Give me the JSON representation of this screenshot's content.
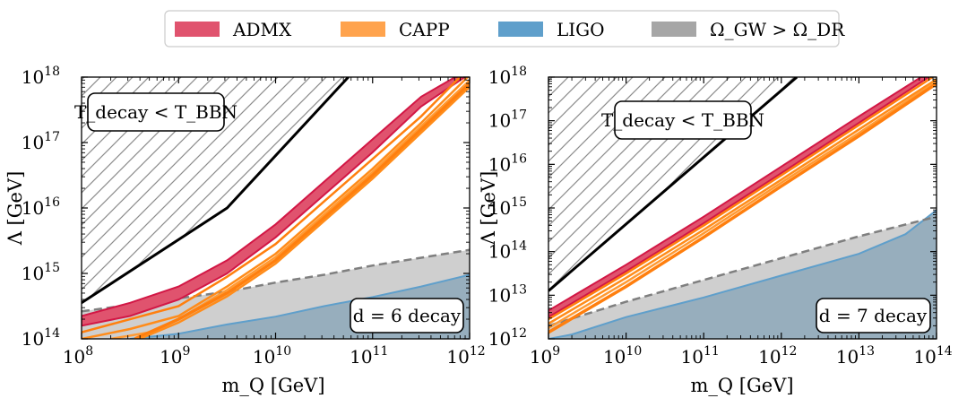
{
  "legend": {
    "items": [
      {
        "label": "ADMX",
        "color": "#e0536e"
      },
      {
        "label": "CAPP",
        "color": "#ffa34d"
      },
      {
        "label": "LIGO",
        "color": "#5f9fcb"
      },
      {
        "label": "Ω_GW > Ω_DR",
        "color": "#a6a6a6"
      }
    ]
  },
  "chart_data": [
    {
      "type": "area",
      "title": "",
      "xlabel": "m_Q [GeV]",
      "ylabel": "Λ [GeV]",
      "xscale": "log",
      "yscale": "log",
      "xlim_log10": [
        8,
        12
      ],
      "ylim_log10": [
        14,
        18
      ],
      "x_ticks": [
        {
          "exp": "8"
        },
        {
          "exp": "9"
        },
        {
          "exp": "10"
        },
        {
          "exp": "11"
        },
        {
          "exp": "12"
        }
      ],
      "y_ticks": [
        {
          "exp": "14"
        },
        {
          "exp": "15"
        },
        {
          "exp": "16"
        },
        {
          "exp": "17"
        },
        {
          "exp": "18"
        }
      ],
      "annotation_bbn": "T_decay < T_BBN",
      "annotation_decay": "d = 6 decay",
      "hatch_region": {
        "label": "T_decay < T_BBN",
        "boundary_log10": [
          [
            8,
            14.55
          ],
          [
            9.5,
            16.0
          ],
          [
            10.75,
            18.0
          ]
        ]
      },
      "bbn_line_log10": [
        [
          8,
          14.55
        ],
        [
          9.5,
          16.0
        ],
        [
          10.75,
          18.0
        ]
      ],
      "admx_band_log10": {
        "upper": [
          [
            8,
            14.35
          ],
          [
            8.5,
            14.55
          ],
          [
            9.0,
            14.8
          ],
          [
            9.5,
            15.2
          ],
          [
            10.0,
            15.75
          ],
          [
            10.5,
            16.4
          ],
          [
            11.0,
            17.05
          ],
          [
            11.5,
            17.7
          ],
          [
            11.85,
            18.0
          ]
        ],
        "lower": [
          [
            8,
            14.2
          ],
          [
            8.5,
            14.35
          ],
          [
            9.0,
            14.6
          ],
          [
            9.5,
            15.0
          ],
          [
            10.0,
            15.55
          ],
          [
            10.5,
            16.2
          ],
          [
            11.0,
            16.85
          ],
          [
            11.5,
            17.55
          ],
          [
            11.95,
            18.0
          ]
        ]
      },
      "capp_lines_log10": [
        [
          [
            8.0,
            14.1
          ],
          [
            8.5,
            14.3
          ],
          [
            9.0,
            14.5
          ],
          [
            9.5,
            14.95
          ],
          [
            10.0,
            15.45
          ],
          [
            10.5,
            16.1
          ],
          [
            11.0,
            16.75
          ],
          [
            11.5,
            17.4
          ],
          [
            11.9,
            18.0
          ]
        ],
        [
          [
            8.0,
            14.0
          ],
          [
            8.5,
            14.15
          ],
          [
            9.0,
            14.35
          ],
          [
            9.5,
            14.8
          ],
          [
            10.0,
            15.3
          ],
          [
            10.5,
            15.95
          ],
          [
            11.0,
            16.6
          ],
          [
            11.5,
            17.3
          ],
          [
            11.98,
            18.0
          ]
        ],
        [
          [
            8.3,
            14.0
          ],
          [
            8.7,
            14.1
          ],
          [
            9.0,
            14.3
          ],
          [
            9.5,
            14.75
          ],
          [
            10.0,
            15.25
          ],
          [
            10.5,
            15.9
          ],
          [
            11.0,
            16.55
          ],
          [
            11.5,
            17.25
          ],
          [
            12.0,
            17.95
          ]
        ],
        [
          [
            8.55,
            14.0
          ],
          [
            9.0,
            14.3
          ],
          [
            9.5,
            14.7
          ],
          [
            10.0,
            15.2
          ],
          [
            10.5,
            15.85
          ],
          [
            11.0,
            16.5
          ],
          [
            11.5,
            17.2
          ],
          [
            12.0,
            17.9
          ]
        ],
        [
          [
            8.6,
            14.0
          ],
          [
            9.0,
            14.25
          ],
          [
            9.5,
            14.65
          ],
          [
            10.0,
            15.15
          ],
          [
            10.5,
            15.8
          ],
          [
            11.0,
            16.45
          ],
          [
            11.5,
            17.15
          ],
          [
            12.0,
            17.85
          ]
        ]
      ],
      "gw_dashed_log10": [
        [
          8,
          14.42
        ],
        [
          8.5,
          14.52
        ],
        [
          9.0,
          14.62
        ],
        [
          9.5,
          14.72
        ],
        [
          10.0,
          14.86
        ],
        [
          10.5,
          14.98
        ],
        [
          11.0,
          15.12
        ],
        [
          11.5,
          15.24
        ],
        [
          12.0,
          15.36
        ]
      ],
      "ligo_line_log10": [
        [
          8.5,
          14.0
        ],
        [
          9.0,
          14.08
        ],
        [
          9.5,
          14.22
        ],
        [
          10.0,
          14.34
        ],
        [
          10.5,
          14.5
        ],
        [
          11.0,
          14.64
        ],
        [
          11.5,
          14.8
        ],
        [
          12.0,
          14.98
        ]
      ]
    },
    {
      "type": "area",
      "title": "",
      "xlabel": "m_Q [GeV]",
      "ylabel": "Λ [GeV]",
      "xscale": "log",
      "yscale": "log",
      "xlim_log10": [
        9,
        14
      ],
      "ylim_log10": [
        12,
        18
      ],
      "x_ticks": [
        {
          "exp": "9"
        },
        {
          "exp": "10"
        },
        {
          "exp": "11"
        },
        {
          "exp": "12"
        },
        {
          "exp": "13"
        },
        {
          "exp": "14"
        }
      ],
      "y_ticks": [
        {
          "exp": "12"
        },
        {
          "exp": "13"
        },
        {
          "exp": "14"
        },
        {
          "exp": "15"
        },
        {
          "exp": "16"
        },
        {
          "exp": "17"
        },
        {
          "exp": "18"
        }
      ],
      "annotation_bbn": "T_decay < T_BBN",
      "annotation_decay": "d = 7 decay",
      "hatch_region": {
        "label": "T_decay < T_BBN",
        "boundary_log10": [
          [
            9,
            13.1
          ],
          [
            12.2,
            18.0
          ]
        ]
      },
      "bbn_line_log10": [
        [
          9,
          13.1
        ],
        [
          12.2,
          18.0
        ]
      ],
      "admx_band_log10": {
        "upper": [
          [
            9,
            12.65
          ],
          [
            10,
            13.7
          ],
          [
            11,
            14.8
          ],
          [
            12,
            15.95
          ],
          [
            13,
            17.1
          ],
          [
            13.8,
            18.0
          ]
        ],
        "lower": [
          [
            9,
            12.5
          ],
          [
            10,
            13.55
          ],
          [
            11,
            14.65
          ],
          [
            12,
            15.8
          ],
          [
            13,
            16.95
          ],
          [
            13.9,
            18.0
          ]
        ]
      },
      "capp_lines_log10": [
        [
          [
            9,
            12.45
          ],
          [
            10,
            13.5
          ],
          [
            11,
            14.6
          ],
          [
            12,
            15.75
          ],
          [
            13,
            16.9
          ],
          [
            13.95,
            18.0
          ]
        ],
        [
          [
            9,
            12.35
          ],
          [
            10,
            13.4
          ],
          [
            11,
            14.5
          ],
          [
            12,
            15.65
          ],
          [
            13,
            16.8
          ],
          [
            14,
            17.95
          ]
        ],
        [
          [
            9,
            12.25
          ],
          [
            10,
            13.3
          ],
          [
            11,
            14.42
          ],
          [
            12,
            15.58
          ],
          [
            13,
            16.72
          ],
          [
            14,
            17.9
          ]
        ],
        [
          [
            9,
            12.15
          ],
          [
            10,
            13.2
          ],
          [
            11,
            14.33
          ],
          [
            12,
            15.5
          ],
          [
            13,
            16.65
          ],
          [
            14,
            17.85
          ]
        ]
      ],
      "gw_dashed_log10": [
        [
          9,
          12.3
        ],
        [
          10,
          12.85
        ],
        [
          11,
          13.35
        ],
        [
          12,
          13.85
        ],
        [
          13,
          14.35
        ],
        [
          14,
          14.8
        ]
      ],
      "ligo_line_log10": [
        [
          9,
          12.0
        ],
        [
          9.3,
          12.1
        ],
        [
          10,
          12.5
        ],
        [
          11,
          12.95
        ],
        [
          12,
          13.45
        ],
        [
          13,
          13.95
        ],
        [
          13.6,
          14.4
        ],
        [
          14,
          14.95
        ]
      ]
    }
  ]
}
